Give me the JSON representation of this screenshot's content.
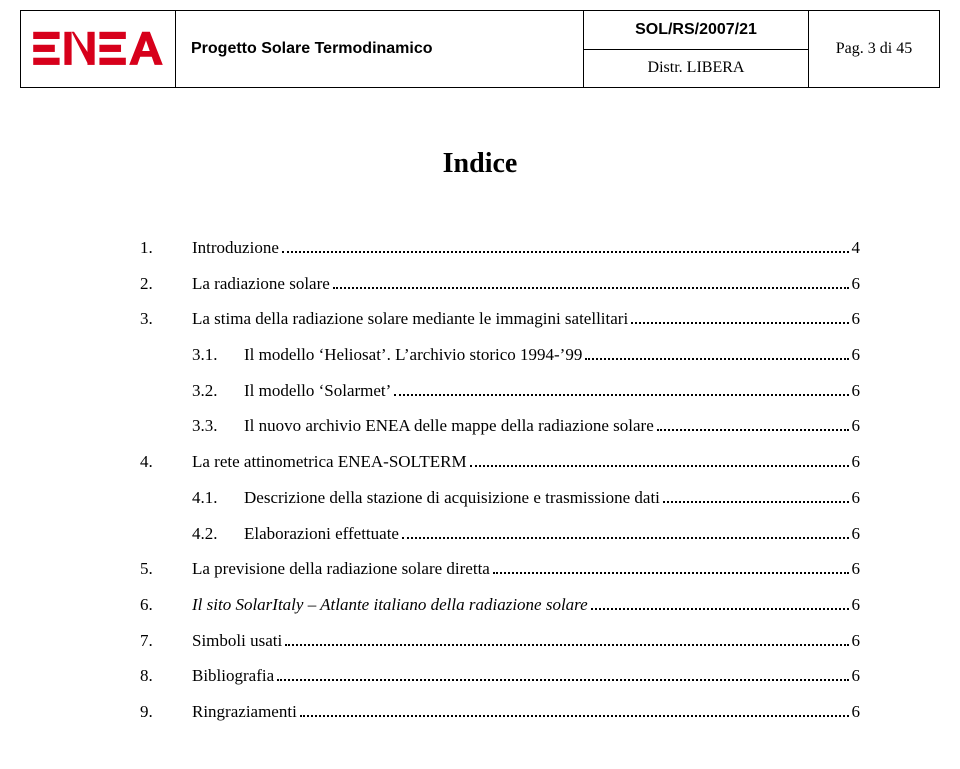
{
  "header": {
    "project_title": "Progetto Solare Termodinamico",
    "doc_code": "SOL/RS/2007/21",
    "distribution": "Distr.  LIBERA",
    "page_label": "Pag. 3 di 45"
  },
  "title": "Indice",
  "toc": [
    {
      "num": "1.",
      "label": "Introduzione",
      "page": "4",
      "sub": false,
      "italic": false
    },
    {
      "num": "2.",
      "label": "La radiazione solare",
      "page": "6",
      "sub": false,
      "italic": false
    },
    {
      "num": "3.",
      "label": "La stima della radiazione solare mediante le immagini satellitari",
      "page": "6",
      "sub": false,
      "italic": false
    },
    {
      "num": "3.1.",
      "label": "Il modello ‘Heliosat’. L’archivio storico 1994-’99",
      "page": "6",
      "sub": true,
      "italic": false
    },
    {
      "num": "3.2.",
      "label": "Il modello ‘Solarmet’",
      "page": "6",
      "sub": true,
      "italic": false
    },
    {
      "num": "3.3.",
      "label": "Il nuovo archivio ENEA delle mappe della radiazione solare",
      "page": "6",
      "sub": true,
      "italic": false
    },
    {
      "num": "4.",
      "label": "La rete attinometrica ENEA-SOLTERM",
      "page": "6",
      "sub": false,
      "italic": false
    },
    {
      "num": "4.1.",
      "label": "Descrizione della stazione di acquisizione e trasmissione dati",
      "page": "6",
      "sub": true,
      "italic": false
    },
    {
      "num": "4.2.",
      "label": "Elaborazioni effettuate",
      "page": "6",
      "sub": true,
      "italic": false
    },
    {
      "num": "5.",
      "label": "La previsione della radiazione solare diretta",
      "page": "6",
      "sub": false,
      "italic": false
    },
    {
      "num": "6.",
      "label": "Il sito SolarItaly – Atlante italiano della radiazione solare",
      "page": "6",
      "sub": false,
      "italic": true
    },
    {
      "num": "7.",
      "label": "Simboli usati",
      "page": "6",
      "sub": false,
      "italic": false
    },
    {
      "num": "8.",
      "label": "Bibliografia",
      "page": "6",
      "sub": false,
      "italic": false
    },
    {
      "num": "9.",
      "label": "Ringraziamenti",
      "page": "6",
      "sub": false,
      "italic": false
    }
  ],
  "colors": {
    "logo_red": "#d7001b",
    "text": "#000000",
    "background": "#ffffff"
  }
}
